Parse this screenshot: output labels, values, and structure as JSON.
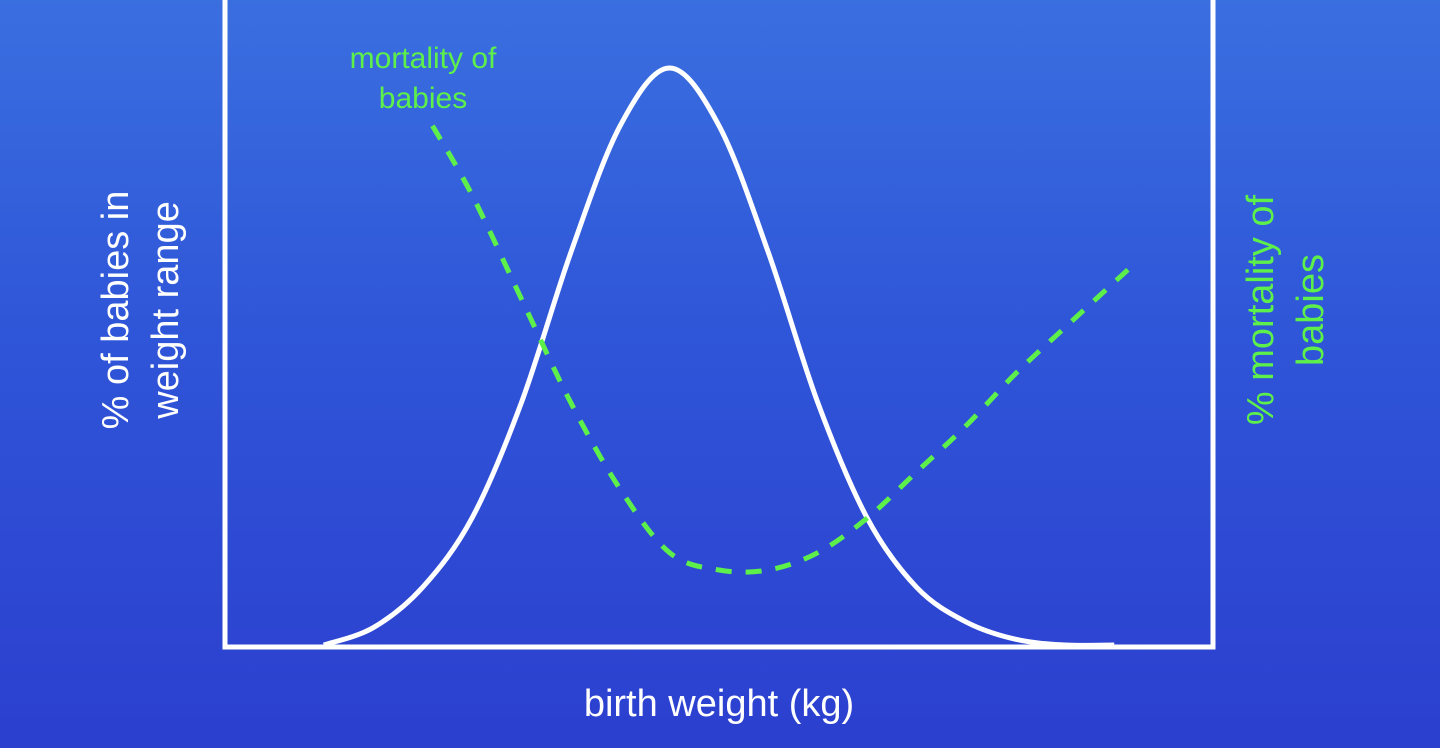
{
  "chart_data": {
    "type": "line",
    "xlabel": "birth weight (kg)",
    "ylabel_left": [
      "% of babies in",
      "weight range"
    ],
    "ylabel_right": [
      "% mortality of",
      "babies"
    ],
    "annotation": [
      "mortality of",
      "babies"
    ],
    "x": [
      0,
      0.1,
      0.2,
      0.3,
      0.35,
      0.4,
      0.45,
      0.5,
      0.55,
      0.6,
      0.65,
      0.7,
      0.8,
      0.9,
      1
    ],
    "ylim": [
      0,
      1
    ],
    "series": [
      {
        "key": "distribution",
        "style": "solid",
        "color": "#ffffff",
        "x": [
          0.1,
          0.15,
          0.2,
          0.25,
          0.3,
          0.35,
          0.4,
          0.45,
          0.5,
          0.55,
          0.6,
          0.65,
          0.7,
          0.75,
          0.8,
          0.85,
          0.9
        ],
        "values": [
          0.0,
          0.03,
          0.1,
          0.22,
          0.42,
          0.68,
          0.9,
          1.0,
          0.9,
          0.68,
          0.42,
          0.22,
          0.1,
          0.04,
          0.01,
          0.0,
          0.0
        ]
      },
      {
        "key": "mortality",
        "style": "dashed",
        "color": "#5ef04a",
        "x": [
          0.21,
          0.25,
          0.3,
          0.35,
          0.4,
          0.45,
          0.5,
          0.55,
          0.6,
          0.65,
          0.7,
          0.75,
          0.8,
          0.85,
          0.92
        ],
        "values": [
          0.9,
          0.78,
          0.6,
          0.42,
          0.27,
          0.16,
          0.13,
          0.13,
          0.16,
          0.22,
          0.3,
          0.38,
          0.47,
          0.55,
          0.66
        ]
      }
    ],
    "grid": false,
    "legend": "none"
  }
}
